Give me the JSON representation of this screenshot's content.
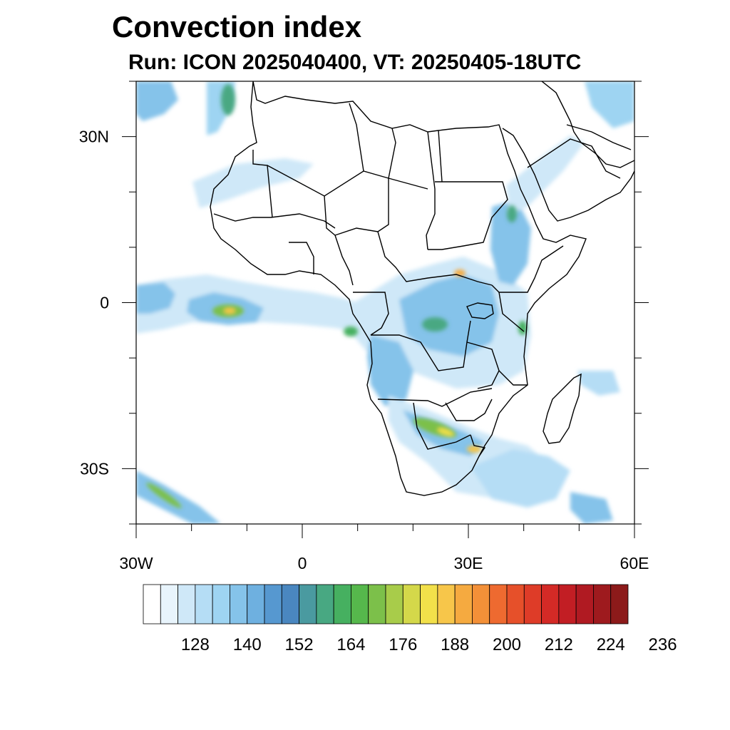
{
  "title": "Convection index",
  "subtitle": "Run: ICON 2025040400,  VT: 20250405-18UTC",
  "map": {
    "region": "Africa",
    "extent": {
      "lon": [
        -30,
        60
      ],
      "lat": [
        -40,
        40
      ]
    },
    "lat_tick_labels": [
      {
        "lat": 30,
        "label": "30N"
      },
      {
        "lat": 0,
        "label": "0"
      },
      {
        "lat": -30,
        "label": "30S"
      }
    ],
    "lon_tick_labels": [
      {
        "lon": -30,
        "label": "30W"
      },
      {
        "lon": 0,
        "label": "0"
      },
      {
        "lon": 30,
        "label": "30E"
      },
      {
        "lon": 60,
        "label": "60E"
      }
    ],
    "minor_lat_ticks": [
      40,
      30,
      20,
      10,
      0,
      -10,
      -20,
      -30,
      -40
    ],
    "minor_lon_ticks": [
      -30,
      -20,
      -10,
      0,
      10,
      20,
      30,
      40,
      50,
      60
    ]
  },
  "colorbar": {
    "colors": [
      "#ffffff",
      "#e8f4fc",
      "#cfe8f8",
      "#b5ddf5",
      "#9ed4f2",
      "#85c3ea",
      "#6eb0e0",
      "#5698d0",
      "#4a87c0",
      "#4a9aa0",
      "#48a882",
      "#46b060",
      "#56b84c",
      "#7cc04a",
      "#a8cc4a",
      "#d4d84a",
      "#f2e04a",
      "#f7c64a",
      "#f5aa40",
      "#f39038",
      "#ee6a30",
      "#e6502a",
      "#de3c28",
      "#d42a26",
      "#c21e24",
      "#b01a22",
      "#9e1a1e",
      "#8c1a1a"
    ],
    "tick_labels": [
      "128",
      "140",
      "152",
      "164",
      "176",
      "188",
      "200",
      "212",
      "224",
      "236"
    ]
  }
}
